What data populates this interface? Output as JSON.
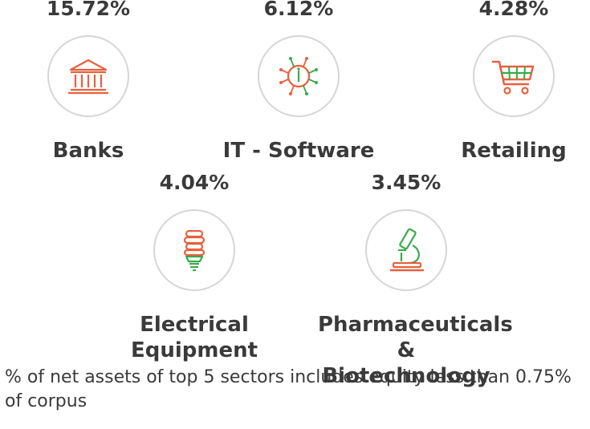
{
  "chart_data": {
    "type": "table",
    "categories": [
      "Banks",
      "IT - Software",
      "Retailing",
      "Electrical Equipment",
      "Pharmaceuticals & Biotechnology"
    ],
    "values": [
      15.72,
      6.12,
      4.28,
      4.04,
      3.45
    ],
    "unit": "%",
    "sectors": [
      {
        "name": "Banks",
        "value_label": "15.72%",
        "value": 15.72,
        "icon": "bank-building-icon"
      },
      {
        "name": "IT - Software",
        "value_label": "6.12%",
        "value": 6.12,
        "icon": "circuit-chip-icon"
      },
      {
        "name": "Retailing",
        "value_label": "4.28%",
        "value": 4.28,
        "icon": "shopping-cart-icon"
      },
      {
        "name": "Electrical\nEquipment",
        "value_label": "4.04%",
        "value": 4.04,
        "icon": "light-bulb-icon"
      },
      {
        "name": "Pharmaceuticals\n& Biotechnology",
        "value_label": "3.45%",
        "value": 3.45,
        "icon": "microscope-icon"
      }
    ],
    "footnote": "% of net assets of top 5 sectors includes equity less than 0.75% of corpus"
  },
  "colors": {
    "text": "#3a3a3a",
    "icon_circle": "#d6d6d6",
    "icon_orange": "#e8603c",
    "icon_green": "#3aaa4a"
  }
}
